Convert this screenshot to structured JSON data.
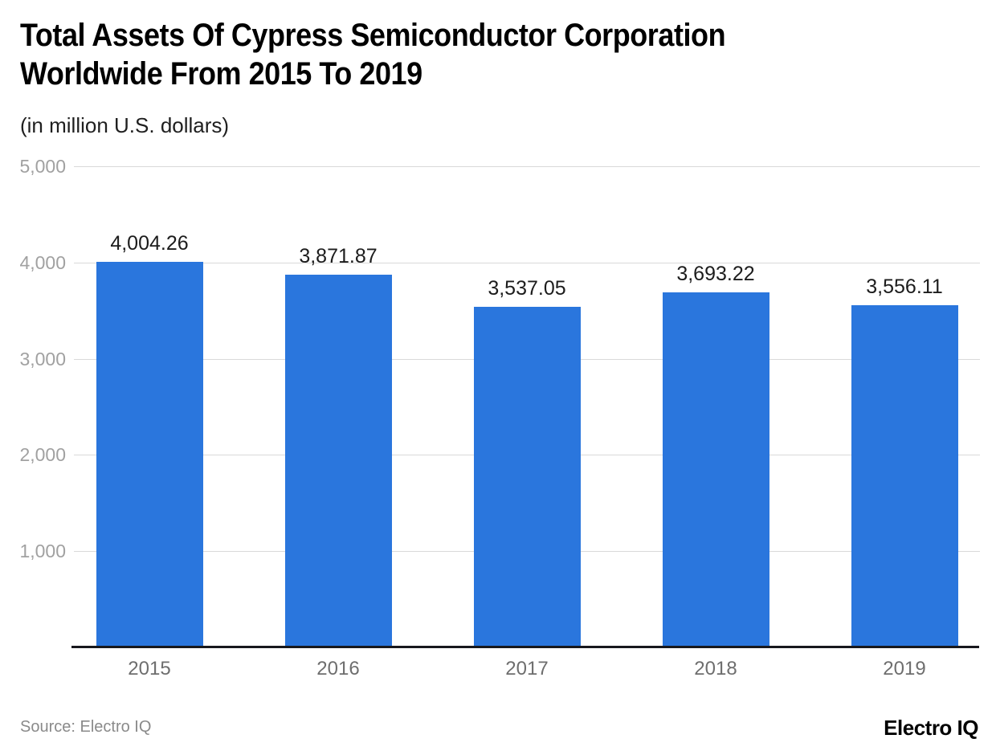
{
  "header": {
    "title_line1": "Total Assets Of Cypress Semiconductor Corporation",
    "title_line2": "Worldwide From 2015 To 2019",
    "subtitle": "(in million U.S. dollars)"
  },
  "footer": {
    "source": "Source: Electro IQ",
    "logo": "Electro IQ"
  },
  "chart_data": {
    "type": "bar",
    "title": "Total Assets Of Cypress Semiconductor Corporation Worldwide From 2015 To 2019",
    "subtitle": "(in million U.S. dollars)",
    "categories": [
      "2015",
      "2016",
      "2017",
      "2018",
      "2019"
    ],
    "values": [
      4004.26,
      3871.87,
      3537.05,
      3693.22,
      3556.11
    ],
    "value_labels": [
      "4,004.26",
      "3,871.87",
      "3,537.05",
      "3,693.22",
      "3,556.11"
    ],
    "xlabel": "",
    "ylabel": "",
    "ylim": [
      0,
      5000
    ],
    "yticks": [
      5000,
      4000,
      3000,
      2000,
      1000
    ],
    "ytick_labels": [
      "5,000",
      "4,000",
      "3,000",
      "2,000",
      "1,000"
    ],
    "grid": true,
    "legend_position": "none",
    "bar_color": "#2a76dd"
  },
  "colors": {
    "bar": "#2a76dd",
    "gridline": "#d9d9d9",
    "axis_line": "#17181d",
    "ytick_label": "#a1a1a1",
    "xtick_label": "#6e6e6e",
    "value_label": "#1c1c1c",
    "title": "#000000",
    "subtitle": "#1f1f1f",
    "source": "#8a8a8a",
    "logo": "#000000"
  }
}
